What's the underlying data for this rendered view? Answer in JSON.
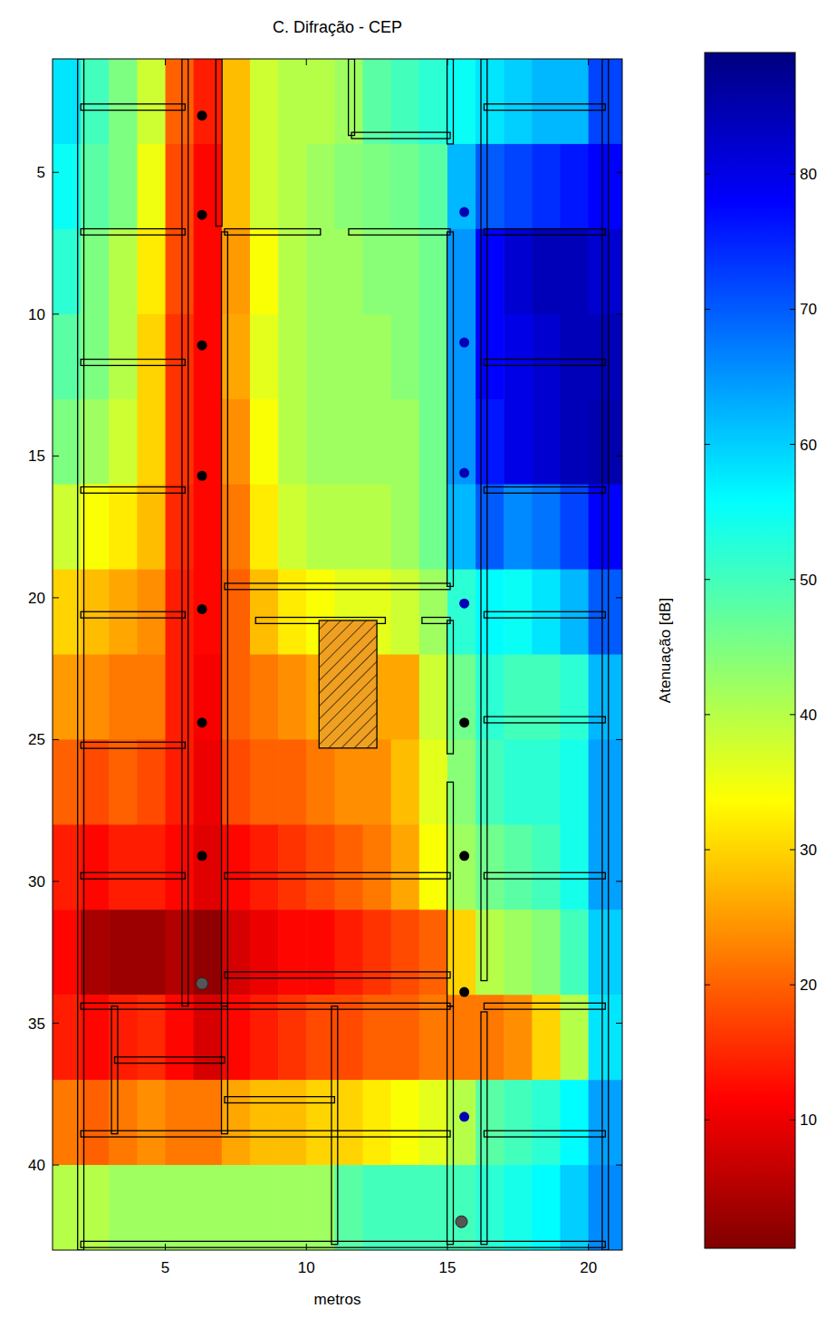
{
  "chart_data": {
    "type": "heatmap",
    "title": "C. Difração - CEP",
    "x_label": "metros",
    "xlim": [
      1,
      21.2
    ],
    "ylim": [
      43,
      1
    ],
    "xticks": [
      5,
      10,
      15,
      20
    ],
    "yticks": [
      5,
      10,
      15,
      20,
      25,
      30,
      35,
      40
    ],
    "cells": {
      "x_edges": [
        1,
        2,
        3,
        4,
        5,
        6,
        7,
        8,
        9,
        10,
        11,
        12,
        13,
        14,
        15,
        16,
        17,
        18,
        19,
        20,
        21.2
      ],
      "y_edges": [
        1,
        4,
        7,
        10,
        13,
        16,
        19,
        22,
        25,
        28,
        31,
        34,
        37,
        40,
        43
      ],
      "values": [
        [
          58,
          50,
          45,
          38,
          20,
          14,
          28,
          38,
          40,
          40,
          42,
          48,
          50,
          52,
          55,
          58,
          60,
          62,
          62,
          72
        ],
        [
          55,
          48,
          45,
          35,
          18,
          12,
          28,
          38,
          40,
          42,
          44,
          45,
          46,
          48,
          62,
          70,
          72,
          74,
          76,
          78
        ],
        [
          52,
          45,
          40,
          32,
          18,
          12,
          25,
          34,
          40,
          42,
          42,
          44,
          44,
          46,
          65,
          78,
          82,
          84,
          84,
          82
        ],
        [
          48,
          45,
          40,
          30,
          16,
          12,
          26,
          36,
          40,
          42,
          42,
          42,
          44,
          46,
          65,
          78,
          80,
          82,
          84,
          84
        ],
        [
          45,
          42,
          38,
          30,
          16,
          12,
          24,
          34,
          40,
          42,
          42,
          42,
          42,
          46,
          65,
          76,
          80,
          82,
          84,
          85
        ],
        [
          38,
          34,
          32,
          28,
          15,
          12,
          22,
          32,
          38,
          40,
          40,
          40,
          42,
          46,
          62,
          70,
          66,
          68,
          72,
          78
        ],
        [
          30,
          28,
          26,
          24,
          14,
          12,
          20,
          28,
          32,
          34,
          36,
          36,
          38,
          42,
          52,
          56,
          55,
          58,
          62,
          70
        ],
        [
          25,
          24,
          22,
          22,
          14,
          11,
          20,
          22,
          24,
          26,
          26,
          26,
          26,
          38,
          46,
          52,
          50,
          50,
          52,
          62
        ],
        [
          20,
          18,
          20,
          18,
          14,
          10,
          18,
          20,
          20,
          22,
          24,
          24,
          28,
          36,
          44,
          50,
          52,
          52,
          54,
          64
        ],
        [
          14,
          12,
          14,
          14,
          12,
          9,
          12,
          14,
          16,
          18,
          20,
          22,
          26,
          34,
          42,
          46,
          48,
          50,
          54,
          64
        ],
        [
          12,
          4,
          3,
          3,
          5,
          2,
          8,
          10,
          12,
          12,
          14,
          16,
          18,
          20,
          30,
          40,
          42,
          44,
          50,
          60
        ],
        [
          14,
          12,
          14,
          15,
          12,
          8,
          12,
          14,
          16,
          18,
          18,
          20,
          20,
          22,
          22,
          22,
          24,
          30,
          40,
          58
        ],
        [
          22,
          20,
          22,
          24,
          22,
          22,
          26,
          28,
          28,
          30,
          30,
          32,
          34,
          36,
          40,
          48,
          50,
          52,
          56,
          64
        ],
        [
          40,
          40,
          42,
          42,
          42,
          42,
          42,
          42,
          42,
          42,
          48,
          50,
          50,
          50,
          50,
          52,
          54,
          56,
          60,
          66
        ]
      ]
    },
    "colorbar": {
      "label": "Atenuação [dB]",
      "range": [
        0.5,
        89
      ],
      "ticks": [
        10,
        20,
        30,
        40,
        50,
        60,
        70,
        80
      ]
    },
    "points": {
      "x": [
        6.3,
        6.3,
        6.3,
        6.3,
        6.3,
        6.3,
        6.3,
        15.6,
        15.6,
        15.6,
        15.6,
        15.6,
        15.6,
        15.6,
        15.6
      ],
      "y": [
        3.0,
        6.5,
        11.1,
        15.7,
        20.4,
        24.4,
        29.1,
        6.4,
        11.0,
        15.6,
        20.2,
        24.4,
        29.1,
        33.9,
        38.3
      ],
      "colors": [
        "#000000",
        "#000000",
        "#000000",
        "#000000",
        "#000000",
        "#000000",
        "#000000",
        "#0000b4",
        "#0000b4",
        "#0000b4",
        "#0000b4",
        "#000000",
        "#000000",
        "#000000",
        "#0000b4"
      ]
    },
    "sources": {
      "x": [
        6.3,
        15.5
      ],
      "y": [
        33.6,
        42.0
      ],
      "color": "#555555"
    }
  }
}
